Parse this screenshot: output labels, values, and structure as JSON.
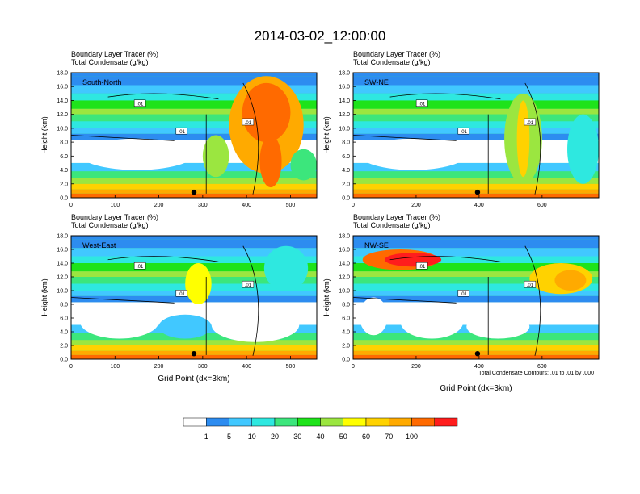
{
  "title": "2014-03-02_12:00:00",
  "footnote": "Total Condensate Contours: .01 to .01 by .000",
  "contour_label": ".01",
  "colorbar": {
    "levels": [
      "1",
      "5",
      "10",
      "20",
      "30",
      "40",
      "50",
      "60",
      "70",
      "100"
    ],
    "colors": [
      "#ffffff",
      "#2d8cf0",
      "#41c8ff",
      "#2ee8e0",
      "#3ce67c",
      "#1ee31a",
      "#9be640",
      "#ffff00",
      "#ffd200",
      "#ffaa00",
      "#ff6a00",
      "#ff1d1d"
    ]
  },
  "chart_data": [
    {
      "type": "heatmap",
      "name": "South-North",
      "title_lines": [
        "Boundary Layer Tracer   (%)",
        "Total Condensate   (g/kg)"
      ],
      "ylabel": "Height (km)",
      "xlabel": "",
      "xlim": [
        0,
        560
      ],
      "ylim": [
        0,
        18
      ],
      "xticks": [
        "0",
        "100",
        "200",
        "300",
        "400",
        "500"
      ],
      "yticks": [
        "0.0",
        "2.0",
        "4.0",
        "6.0",
        "8.0",
        "10.0",
        "12.0",
        "14.0",
        "16.0",
        "18.0"
      ],
      "marker_x": 280
    },
    {
      "type": "heatmap",
      "name": "SW-NE",
      "title_lines": [
        "Boundary Layer Tracer   (%)",
        "Total Condensate   (g/kg)"
      ],
      "ylabel": "Height (km)",
      "xlabel": "",
      "xlim": [
        0,
        780
      ],
      "ylim": [
        0,
        18
      ],
      "xticks": [
        "0",
        "200",
        "400",
        "600"
      ],
      "yticks": [
        "0.0",
        "2.0",
        "4.0",
        "6.0",
        "8.0",
        "10.0",
        "12.0",
        "14.0",
        "16.0",
        "18.0"
      ],
      "marker_x": 395
    },
    {
      "type": "heatmap",
      "name": "West-East",
      "title_lines": [
        "Boundary Layer Tracer   (%)",
        "Total Condensate   (g/kg)"
      ],
      "ylabel": "Height (km)",
      "xlabel": "Grid Point (dx=3km)",
      "xlim": [
        0,
        560
      ],
      "ylim": [
        0,
        18
      ],
      "xticks": [
        "0",
        "100",
        "200",
        "300",
        "400",
        "500"
      ],
      "yticks": [
        "0.0",
        "2.0",
        "4.0",
        "6.0",
        "8.0",
        "10.0",
        "12.0",
        "14.0",
        "16.0",
        "18.0"
      ],
      "marker_x": 280
    },
    {
      "type": "heatmap",
      "name": "NW-SE",
      "title_lines": [
        "Boundary Layer Tracer   (%)",
        "Total Condensate   (g/kg)"
      ],
      "ylabel": "Height (km)",
      "xlabel": "Grid Point (dx=3km)",
      "xlim": [
        0,
        780
      ],
      "ylim": [
        0,
        18
      ],
      "xticks": [
        "0",
        "200",
        "400",
        "600"
      ],
      "yticks": [
        "0.0",
        "2.0",
        "4.0",
        "6.0",
        "8.0",
        "10.0",
        "12.0",
        "14.0",
        "16.0",
        "18.0"
      ],
      "marker_x": 395
    }
  ]
}
